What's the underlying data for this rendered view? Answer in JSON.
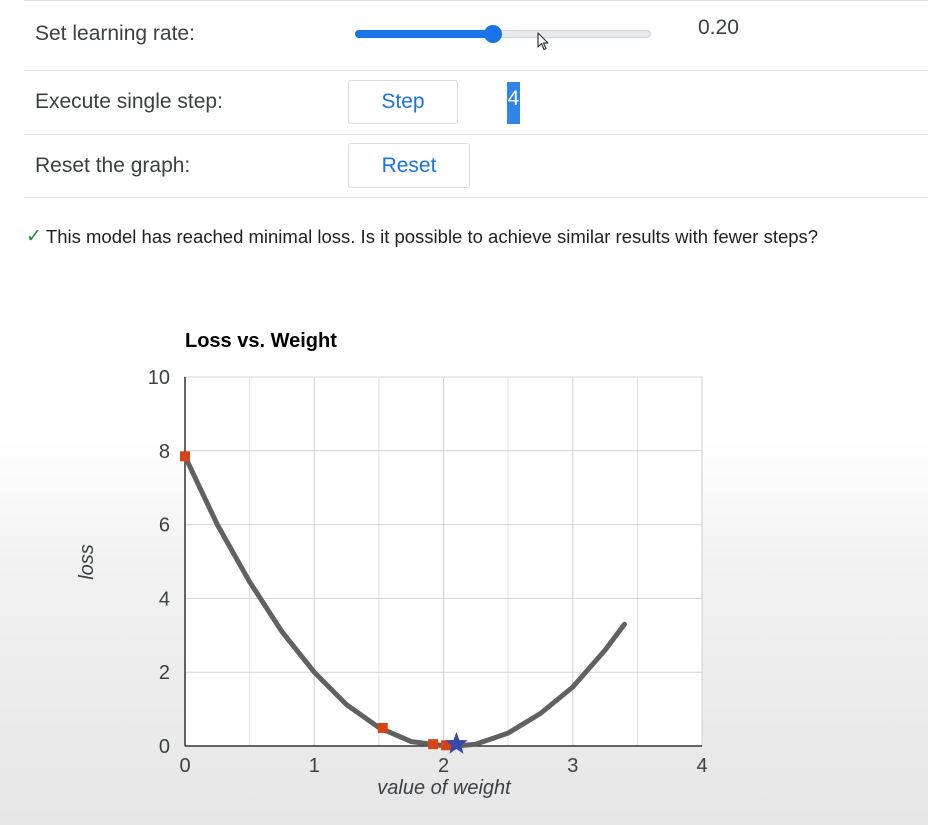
{
  "controls": {
    "learning_rate_label": "Set learning rate:",
    "learning_rate_value": "0.20",
    "learning_rate_fraction": 0.465,
    "step_label": "Execute single step:",
    "step_button": "Step",
    "step_count": "4",
    "reset_label": "Reset the graph:",
    "reset_button": "Reset"
  },
  "message": {
    "check_icon": "✓",
    "text": "This model has reached minimal loss. Is it possible to achieve similar results with fewer steps?"
  },
  "colors": {
    "accent": "#1a73e8",
    "success": "#1e8e3e",
    "curve": "#616161",
    "marker": "#d84315",
    "star": "#3949ab"
  },
  "chart_data": {
    "type": "line",
    "title": "Loss vs. Weight",
    "xlabel": "value of weight",
    "ylabel": "loss",
    "xlim": [
      0,
      4
    ],
    "ylim": [
      0,
      10
    ],
    "xticks": [
      0,
      1,
      2,
      3,
      4
    ],
    "yticks": [
      0,
      2,
      4,
      6,
      8,
      10
    ],
    "grid": true,
    "curve": {
      "x": [
        0,
        0.25,
        0.5,
        0.75,
        1,
        1.25,
        1.5,
        1.75,
        2,
        2.1,
        2.25,
        2.5,
        2.75,
        3,
        3.25,
        3.4
      ],
      "y": [
        7.85,
        6.0,
        4.45,
        3.1,
        2.0,
        1.12,
        0.5,
        0.12,
        0.01,
        0.0,
        0.05,
        0.35,
        0.88,
        1.6,
        2.6,
        3.3
      ]
    },
    "steps": {
      "x": [
        0,
        1.53,
        1.92,
        2.02
      ],
      "y": [
        7.85,
        0.49,
        0.05,
        0.02
      ]
    },
    "minimum": {
      "x": 2.1,
      "y": 0.0
    }
  }
}
